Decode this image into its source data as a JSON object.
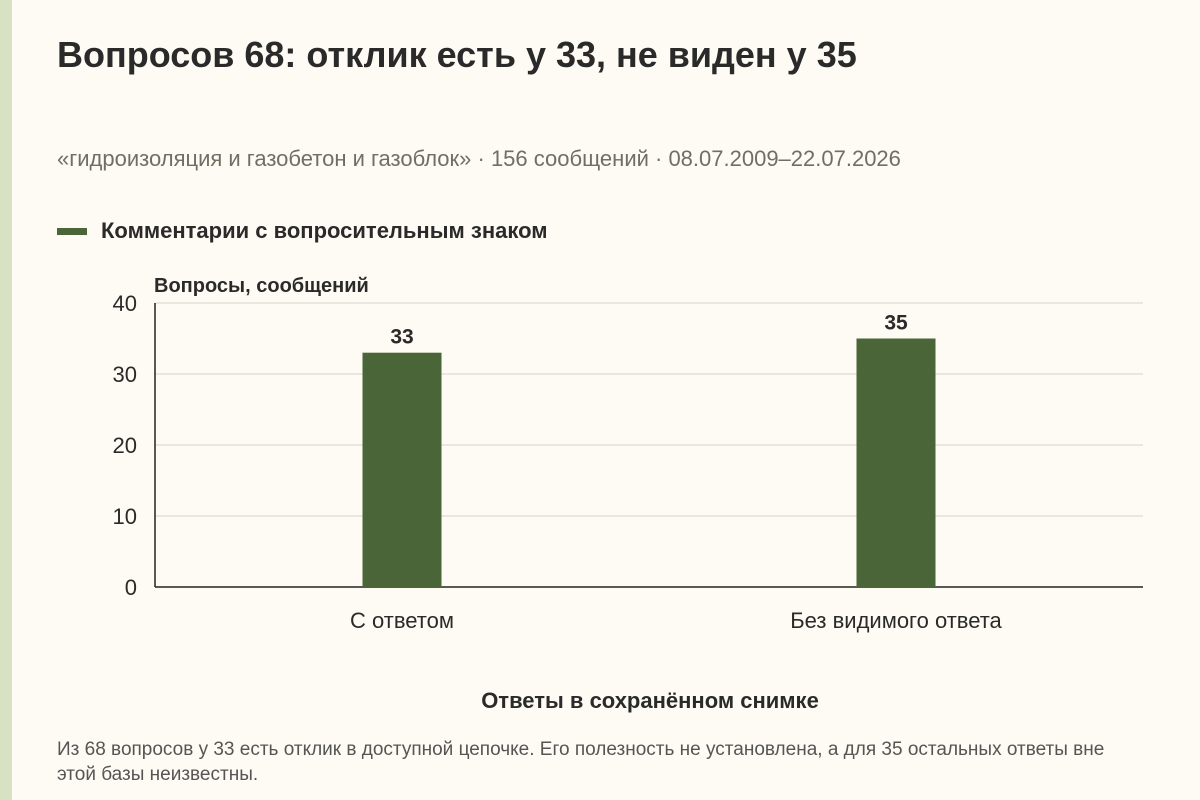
{
  "title": "Вопросов 68: отклик есть у 33, не виден у 35",
  "subtitle": "«гидроизоляция и газобетон и газоблок» · 156 сообщений · 08.07.2009–22.07.2026",
  "legend": {
    "label": "Комментарии с вопросительным знаком",
    "color": "#4a6639"
  },
  "caption": "Из 68 вопросов у 33 есть отклик в доступной цепочке. Его полезность не установлена, а для 35 остальных ответы вне этой базы неизвестны.",
  "chart_data": {
    "type": "bar",
    "categories": [
      "С ответом",
      "Без видимого ответа"
    ],
    "values": [
      33,
      35
    ],
    "data_labels": [
      "33",
      "35"
    ],
    "ylabel": "Вопросы, сообщений",
    "xlabel": "Ответы в сохранённом снимке",
    "ylim": [
      0,
      40
    ],
    "yticks": [
      0,
      10,
      20,
      30,
      40
    ],
    "grid": true,
    "bar_color": "#4a6639",
    "legend_position": "top-left"
  }
}
